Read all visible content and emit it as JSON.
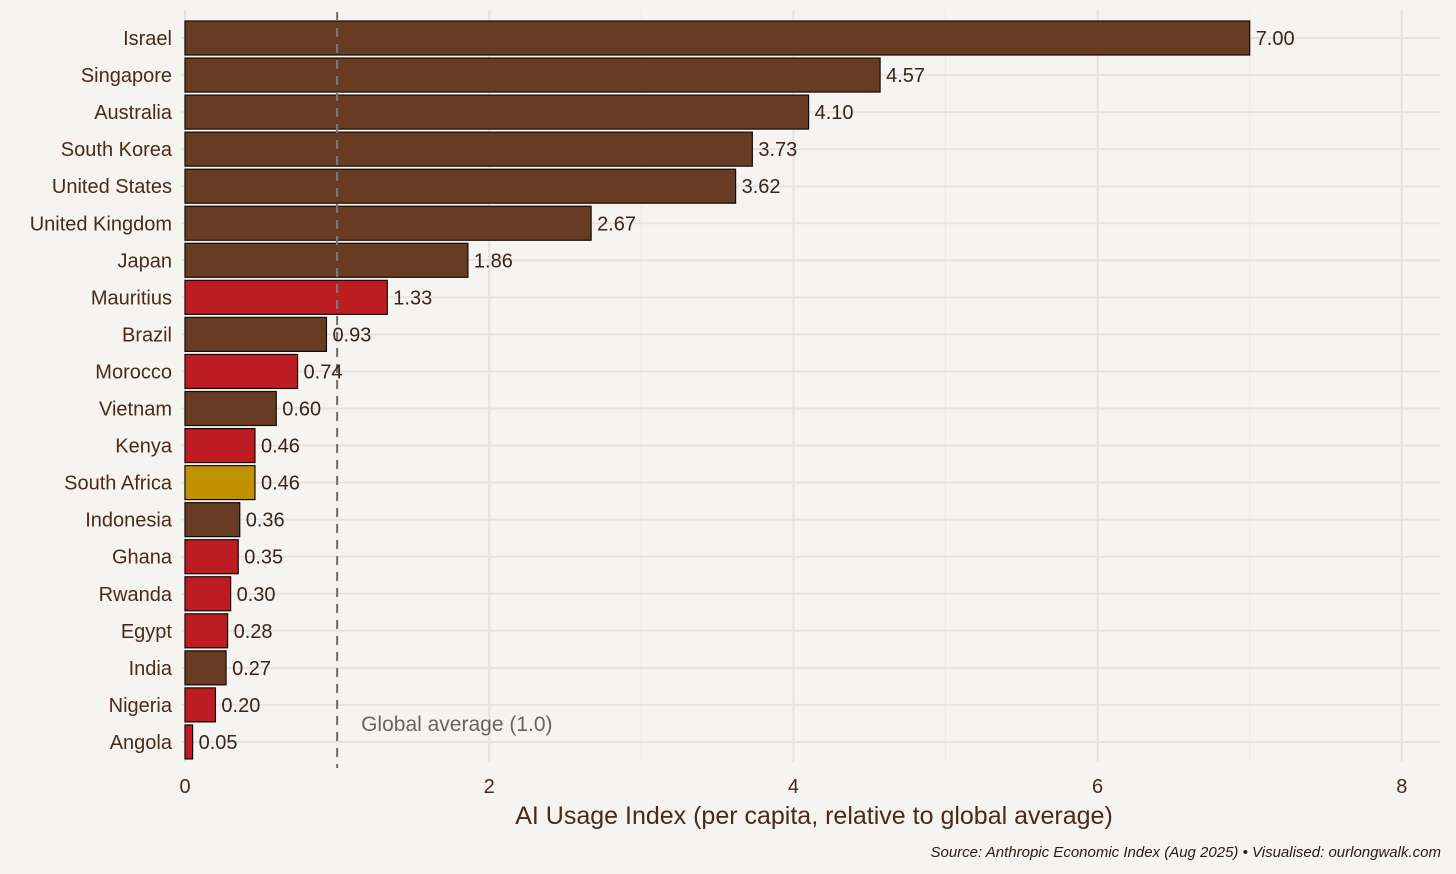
{
  "chart_data": {
    "type": "bar",
    "orientation": "horizontal",
    "categories": [
      "Israel",
      "Singapore",
      "Australia",
      "South Korea",
      "United States",
      "United Kingdom",
      "Japan",
      "Mauritius",
      "Brazil",
      "Morocco",
      "Vietnam",
      "Kenya",
      "South Africa",
      "Indonesia",
      "Ghana",
      "Rwanda",
      "Egypt",
      "India",
      "Nigeria",
      "Angola"
    ],
    "values": [
      7.0,
      4.57,
      4.1,
      3.73,
      3.62,
      2.67,
      1.86,
      1.33,
      0.93,
      0.74,
      0.6,
      0.46,
      0.46,
      0.36,
      0.35,
      0.3,
      0.28,
      0.27,
      0.2,
      0.05
    ],
    "value_labels": [
      "7.00",
      "4.57",
      "4.10",
      "3.73",
      "3.62",
      "2.67",
      "1.86",
      "1.33",
      "0.93",
      "0.74",
      "0.60",
      "0.46",
      "0.46",
      "0.36",
      "0.35",
      "0.30",
      "0.28",
      "0.27",
      "0.20",
      "0.05"
    ],
    "groups": [
      "other",
      "other",
      "other",
      "other",
      "other",
      "other",
      "other",
      "africa",
      "other",
      "africa",
      "other",
      "africa",
      "south_africa",
      "other",
      "africa",
      "africa",
      "africa",
      "other",
      "africa",
      "africa"
    ],
    "group_colors": {
      "other": "#683c22",
      "africa": "#bb1d23",
      "south_africa": "#c19200"
    },
    "xlabel": "AI Usage Index (per capita, relative to global average)",
    "ylabel": "",
    "xlim": [
      0,
      8.3
    ],
    "xticks": [
      0,
      2,
      4,
      6,
      8
    ],
    "xtick_labels": [
      "0",
      "2",
      "4",
      "6",
      "8"
    ],
    "reference_line": {
      "value": 1.0,
      "label": "Global average (1.0)"
    },
    "caption": "Source: Anthropic Economic Index (Aug 2025) • Visualised: ourlongwalk.com",
    "grid": true
  }
}
